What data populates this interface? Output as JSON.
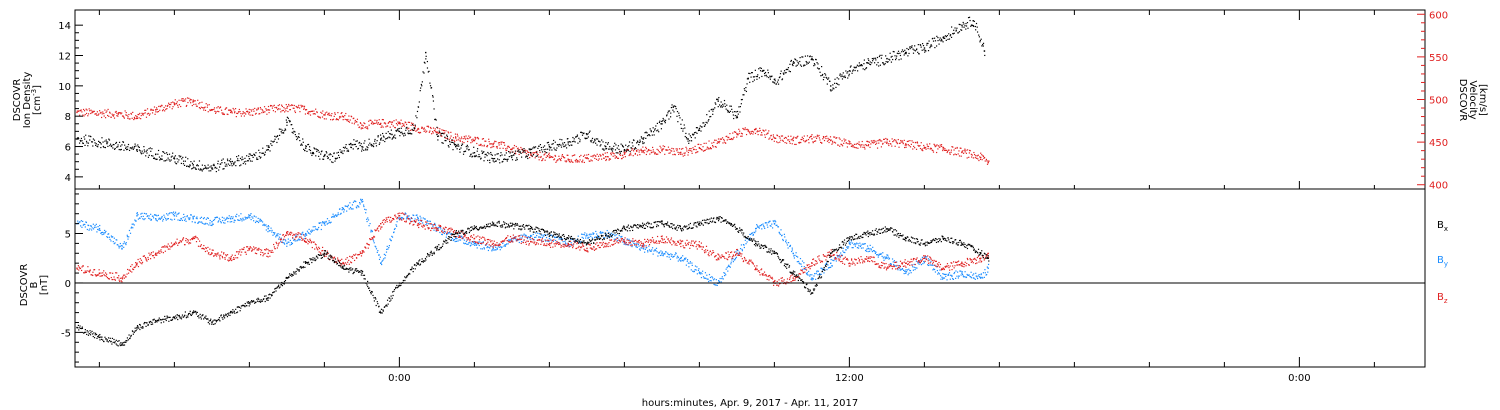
{
  "figure": {
    "xlabel": "hours:minutes, Apr.  9, 2017 - Apr. 11, 2017",
    "x_tick_labels": [
      {
        "t": 8,
        "label": "0:00"
      },
      {
        "t": 20,
        "label": "12:00"
      },
      {
        "t": 32,
        "label": "0:00"
      }
    ],
    "x_range_hours": [
      -0.65,
      35.35
    ]
  },
  "chart_data": [
    {
      "type": "scatter",
      "panel": "top",
      "left_axis": {
        "label_lines": [
          "DSCOVR",
          "Ion Density"
        ],
        "unit_base": "[cm",
        "unit_sup": "-3",
        "unit_end": "]",
        "ylim": [
          3.2,
          15
        ],
        "ticks": [
          4,
          6,
          8,
          10,
          12,
          14
        ]
      },
      "right_axis": {
        "label_lines": [
          "DSCOVR",
          "Velocity",
          "[km/s]"
        ],
        "ylim": [
          395,
          605
        ],
        "ticks": [
          400,
          450,
          500,
          550,
          600
        ],
        "color": "#e02020"
      },
      "series": [
        {
          "axis": "left",
          "color": "#000000",
          "x": [
            -0.6,
            0.2,
            1.0,
            1.5,
            2.0,
            2.5,
            3.0,
            3.5,
            4.0,
            4.5,
            5.0,
            5.5,
            5.7,
            6.0,
            6.3,
            6.7,
            7.0,
            7.5,
            7.8,
            8.0,
            8.4,
            8.7,
            9.0,
            9.5,
            10.0,
            10.5,
            11.0,
            11.5,
            12.0,
            12.5,
            13.0,
            13.5,
            14.0,
            14.5,
            15.0,
            15.3,
            15.7,
            16.0,
            16.5,
            17.0,
            17.3,
            17.7,
            18.0,
            18.5,
            19.0,
            19.5,
            20.0,
            20.5,
            21.0,
            21.5,
            22.0,
            22.5,
            23.0,
            23.3,
            23.6
          ],
          "y": [
            6.5,
            6.2,
            5.8,
            5.5,
            5.2,
            4.8,
            4.6,
            5.0,
            5.2,
            5.8,
            7.6,
            5.9,
            5.6,
            5.4,
            5.2,
            6.2,
            6.0,
            6.5,
            6.8,
            7.0,
            7.2,
            12.2,
            6.8,
            6.0,
            5.6,
            5.2,
            5.4,
            5.6,
            6.0,
            6.3,
            6.8,
            6.0,
            5.8,
            6.5,
            7.5,
            8.6,
            6.5,
            7.2,
            9.0,
            8.0,
            10.5,
            11.0,
            10.2,
            11.5,
            11.8,
            10.0,
            11.0,
            11.5,
            11.8,
            12.2,
            12.5,
            13.2,
            14.0,
            14.3,
            12.3
          ]
        },
        {
          "axis": "right",
          "color": "#e02020",
          "x": [
            -0.6,
            0.5,
            1.0,
            1.5,
            2.0,
            2.5,
            3.0,
            3.5,
            4.0,
            4.5,
            5.0,
            5.5,
            6.0,
            6.5,
            7.0,
            7.5,
            8.0,
            8.5,
            9.0,
            9.5,
            10.0,
            10.5,
            11.0,
            11.5,
            12.0,
            12.5,
            13.0,
            13.5,
            14.0,
            14.5,
            15.0,
            15.5,
            16.0,
            16.5,
            17.0,
            17.5,
            18.0,
            18.5,
            19.0,
            19.5,
            20.0,
            20.5,
            21.0,
            21.5,
            22.0,
            22.5,
            23.0,
            23.5,
            23.7
          ],
          "y": [
            485,
            483,
            480,
            488,
            495,
            498,
            488,
            485,
            485,
            488,
            490,
            488,
            482,
            480,
            470,
            472,
            472,
            466,
            462,
            455,
            452,
            448,
            442,
            435,
            432,
            430,
            431,
            433,
            436,
            440,
            441,
            438,
            443,
            450,
            460,
            465,
            455,
            452,
            454,
            452,
            448,
            446,
            450,
            448,
            444,
            442,
            438,
            432,
            426
          ]
        }
      ]
    },
    {
      "type": "scatter",
      "panel": "bottom",
      "left_axis": {
        "label_lines": [
          "DSCOVR",
          "B",
          "[nT]"
        ],
        "ylim": [
          -8.5,
          9.5
        ],
        "ticks": [
          -5,
          0,
          5
        ],
        "zero_line": true
      },
      "legend": [
        {
          "base": "B",
          "sub": "x",
          "color": "#000000"
        },
        {
          "base": "B",
          "sub": "y",
          "color": "#1a8cff"
        },
        {
          "base": "B",
          "sub": "z",
          "color": "#e02020"
        }
      ],
      "series": [
        {
          "name": "Bx",
          "color": "#000000",
          "x": [
            -0.6,
            0.0,
            0.6,
            1.0,
            1.5,
            2.0,
            2.5,
            3.0,
            3.5,
            4.0,
            4.5,
            5.0,
            5.5,
            6.0,
            6.5,
            7.0,
            7.5,
            8.0,
            8.5,
            9.0,
            9.5,
            10.0,
            10.5,
            11.0,
            11.5,
            12.0,
            12.5,
            13.0,
            13.5,
            14.0,
            14.5,
            15.0,
            15.5,
            16.0,
            16.5,
            17.0,
            17.5,
            18.0,
            18.5,
            19.0,
            19.5,
            20.0,
            20.5,
            21.0,
            21.5,
            22.0,
            22.5,
            23.0,
            23.5,
            23.7
          ],
          "y": [
            -4.5,
            -5.5,
            -6.2,
            -4.5,
            -3.8,
            -3.5,
            -3.0,
            -4.0,
            -3.0,
            -2.0,
            -1.5,
            0.5,
            2.0,
            3.0,
            1.5,
            1.0,
            -3.0,
            0.0,
            2.0,
            3.5,
            5.0,
            5.5,
            6.0,
            5.8,
            5.5,
            5.0,
            4.5,
            4.0,
            4.8,
            5.5,
            5.8,
            6.0,
            5.5,
            6.0,
            6.5,
            5.5,
            4.0,
            3.0,
            1.0,
            -1.0,
            3.0,
            4.5,
            5.0,
            5.5,
            4.5,
            4.0,
            4.5,
            4.0,
            3.0,
            2.5
          ]
        },
        {
          "name": "By",
          "color": "#1a8cff",
          "x": [
            -0.6,
            0.0,
            0.6,
            1.0,
            1.5,
            2.0,
            2.5,
            3.0,
            3.5,
            4.0,
            4.5,
            5.0,
            5.5,
            6.0,
            6.5,
            7.0,
            7.5,
            8.0,
            8.5,
            9.0,
            9.5,
            10.0,
            10.5,
            11.0,
            11.5,
            12.0,
            12.5,
            13.0,
            13.5,
            14.0,
            14.5,
            15.0,
            15.5,
            16.0,
            16.5,
            17.0,
            17.5,
            18.0,
            18.5,
            19.0,
            19.5,
            20.0,
            20.5,
            21.0,
            21.5,
            22.0,
            22.5,
            23.0,
            23.5,
            23.7
          ],
          "y": [
            6.0,
            5.5,
            3.5,
            6.8,
            6.5,
            6.8,
            6.5,
            6.2,
            6.5,
            6.8,
            5.5,
            4.0,
            5.0,
            6.0,
            7.5,
            8.2,
            2.0,
            6.8,
            6.5,
            5.5,
            4.5,
            4.0,
            3.5,
            4.2,
            4.8,
            4.5,
            4.0,
            4.8,
            5.0,
            4.2,
            3.5,
            3.0,
            2.5,
            1.0,
            0.0,
            3.0,
            5.5,
            6.0,
            3.0,
            0.5,
            2.0,
            4.0,
            3.5,
            2.5,
            1.0,
            2.5,
            0.5,
            1.0,
            0.5,
            1.5
          ]
        },
        {
          "name": "Bz",
          "color": "#e02020",
          "x": [
            -0.6,
            0.0,
            0.6,
            1.0,
            1.5,
            2.0,
            2.5,
            3.0,
            3.5,
            4.0,
            4.5,
            5.0,
            5.5,
            6.0,
            6.5,
            7.0,
            7.5,
            8.0,
            8.5,
            9.0,
            9.5,
            10.0,
            10.5,
            11.0,
            11.5,
            12.0,
            12.5,
            13.0,
            13.5,
            14.0,
            14.5,
            15.0,
            15.5,
            16.0,
            16.5,
            17.0,
            17.5,
            18.0,
            18.5,
            19.0,
            19.5,
            20.0,
            20.5,
            21.0,
            21.5,
            22.0,
            22.5,
            23.0,
            23.5,
            23.7
          ],
          "y": [
            1.5,
            1.0,
            0.5,
            2.0,
            3.0,
            4.0,
            4.5,
            3.0,
            2.5,
            3.5,
            3.0,
            5.0,
            4.5,
            3.0,
            2.0,
            3.0,
            6.0,
            6.8,
            6.0,
            5.5,
            5.0,
            4.5,
            4.0,
            4.5,
            4.2,
            4.0,
            4.0,
            3.5,
            4.0,
            4.2,
            4.0,
            4.5,
            4.0,
            3.8,
            2.5,
            3.0,
            1.5,
            0.0,
            0.5,
            2.0,
            3.0,
            2.0,
            2.5,
            1.5,
            2.0,
            2.5,
            1.5,
            2.0,
            2.5,
            3.0
          ]
        }
      ]
    }
  ]
}
